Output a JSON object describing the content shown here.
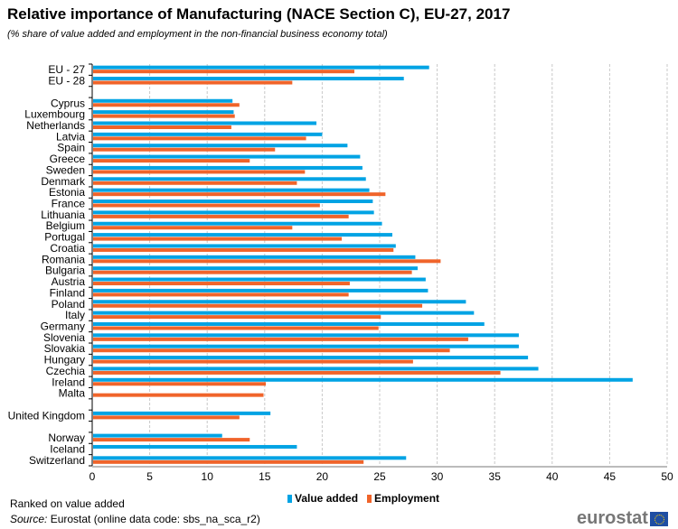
{
  "chart_data": {
    "type": "bar",
    "orientation": "horizontal",
    "title": "Relative importance of Manufacturing (NACE Section C), EU-27, 2017",
    "subtitle": "(% share of value added and employment in the non-financial business economy total)",
    "categories": [
      "EU - 27",
      "EU - 28",
      "Cyprus",
      "Luxembourg",
      "Netherlands",
      "Latvia",
      "Spain",
      "Greece",
      "Sweden",
      "Denmark",
      "Estonia",
      "France",
      "Lithuania",
      "Belgium",
      "Portugal",
      "Croatia",
      "Romania",
      "Bulgaria",
      "Austria",
      "Finland",
      "Poland",
      "Italy",
      "Germany",
      "Slovenia",
      "Slovakia",
      "Hungary",
      "Czechia",
      "Ireland",
      "Malta",
      "United Kingdom",
      "Norway",
      "Iceland",
      "Switzerland"
    ],
    "series": [
      {
        "name": "Value added",
        "color": "#00a3e4",
        "values": [
          29.3,
          27.1,
          12.2,
          12.3,
          19.5,
          20.0,
          22.2,
          23.3,
          23.5,
          23.8,
          24.1,
          24.4,
          24.5,
          25.2,
          26.1,
          26.4,
          28.1,
          28.3,
          29.0,
          29.2,
          32.5,
          33.2,
          34.1,
          37.1,
          37.1,
          37.9,
          38.8,
          47.0,
          null,
          15.5,
          11.3,
          17.8,
          27.3
        ]
      },
      {
        "name": "Employment",
        "color": "#f0642a",
        "values": [
          22.8,
          17.4,
          12.8,
          12.4,
          12.1,
          18.6,
          15.9,
          13.7,
          18.5,
          17.8,
          25.5,
          19.8,
          22.3,
          17.4,
          21.7,
          26.2,
          30.3,
          27.8,
          22.4,
          22.3,
          28.7,
          25.1,
          24.9,
          32.7,
          31.1,
          27.9,
          35.5,
          15.1,
          14.9,
          12.8,
          13.7,
          null,
          23.6
        ]
      }
    ],
    "xlim": [
      0,
      50
    ],
    "xticks": [
      "0",
      "5",
      "10",
      "15",
      "20",
      "25",
      "30",
      "35",
      "40",
      "45",
      "50"
    ],
    "grid": "vertical dashed",
    "legend": "bottom"
  },
  "note": "Ranked on value added",
  "source_label": "Source:",
  "source_text": " Eurostat (online data code: sbs_na_sca_r2)",
  "logo": "eurostat"
}
